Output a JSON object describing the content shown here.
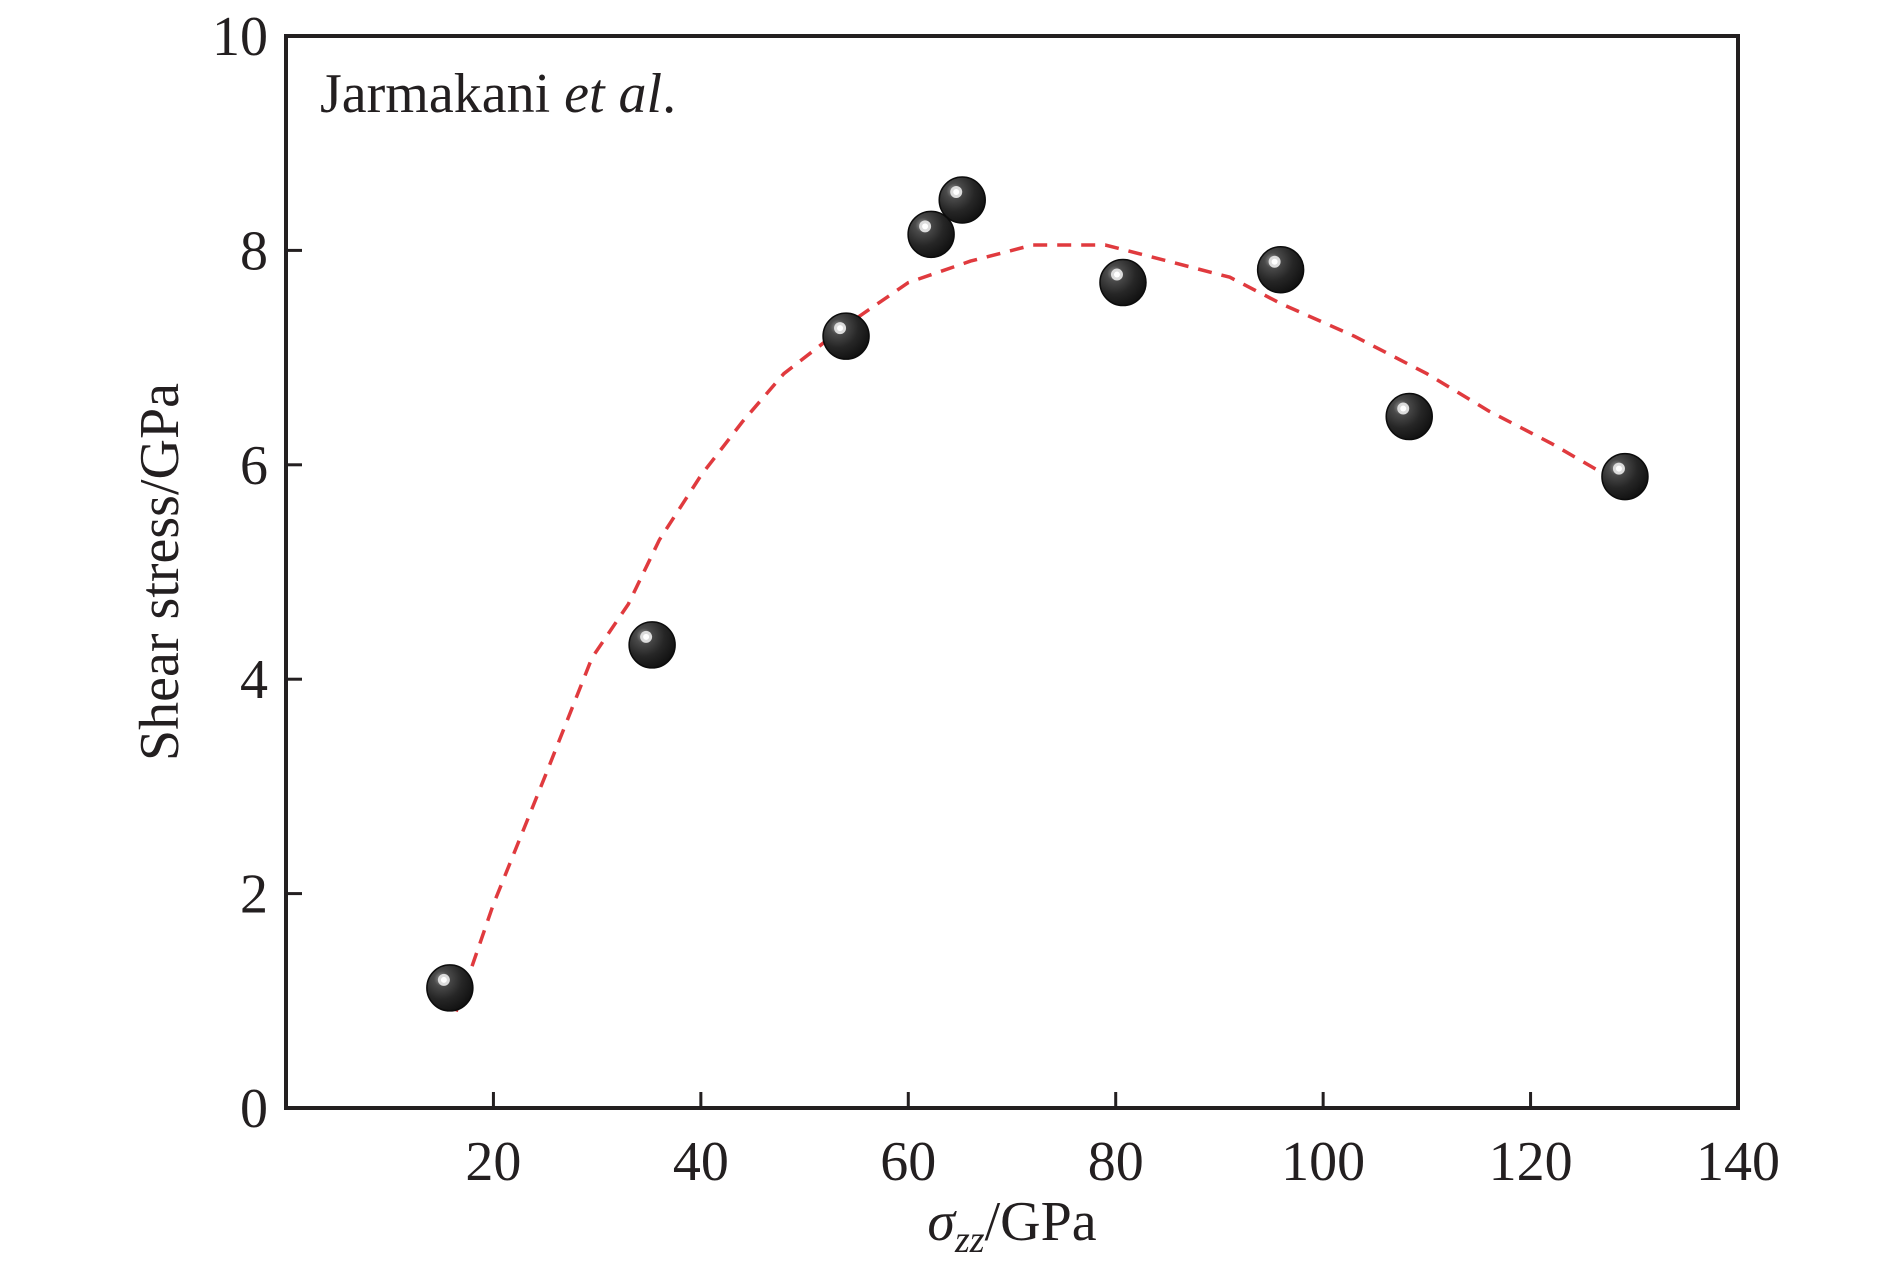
{
  "chart_data": {
    "type": "scatter",
    "title": "",
    "annotation": {
      "prefix": "Jarmakani ",
      "italic": "et al",
      "suffix": "."
    },
    "xlabel": {
      "symbol": "σ",
      "subscript": "zz",
      "unit": "/GPa"
    },
    "ylabel": "Shear stress/GPa",
    "xlim": [
      0,
      140
    ],
    "ylim": [
      0,
      10
    ],
    "xticks": [
      20,
      40,
      60,
      80,
      100,
      120,
      140
    ],
    "yticks": [
      0,
      2,
      4,
      6,
      8,
      10
    ],
    "grid": false,
    "legend": "none",
    "series": [
      {
        "kind": "markers",
        "points": [
          {
            "x": 15.8,
            "y": 1.12
          },
          {
            "x": 35.3,
            "y": 4.32
          },
          {
            "x": 54.0,
            "y": 7.2
          },
          {
            "x": 62.2,
            "y": 8.15
          },
          {
            "x": 65.2,
            "y": 8.47
          },
          {
            "x": 80.7,
            "y": 7.7
          },
          {
            "x": 95.9,
            "y": 7.82
          },
          {
            "x": 108.3,
            "y": 6.45
          },
          {
            "x": 129.1,
            "y": 5.89
          }
        ]
      },
      {
        "kind": "dashed-line",
        "points": [
          {
            "x": 16.4,
            "y": 0.9
          },
          {
            "x": 17.5,
            "y": 1.2
          },
          {
            "x": 20.0,
            "y": 1.9
          },
          {
            "x": 25.0,
            "y": 3.1
          },
          {
            "x": 29.5,
            "y": 4.2
          },
          {
            "x": 33.0,
            "y": 4.7
          },
          {
            "x": 36.0,
            "y": 5.3
          },
          {
            "x": 40.0,
            "y": 5.9
          },
          {
            "x": 44.0,
            "y": 6.4
          },
          {
            "x": 48.0,
            "y": 6.85
          },
          {
            "x": 54.0,
            "y": 7.3
          },
          {
            "x": 60.0,
            "y": 7.7
          },
          {
            "x": 66.0,
            "y": 7.9
          },
          {
            "x": 72.0,
            "y": 8.05
          },
          {
            "x": 79.0,
            "y": 8.05
          },
          {
            "x": 85.0,
            "y": 7.9
          },
          {
            "x": 91.0,
            "y": 7.75
          },
          {
            "x": 96.0,
            "y": 7.5
          },
          {
            "x": 103.0,
            "y": 7.2
          },
          {
            "x": 110.0,
            "y": 6.85
          },
          {
            "x": 116.0,
            "y": 6.5
          },
          {
            "x": 122.0,
            "y": 6.2
          },
          {
            "x": 127.0,
            "y": 5.92
          },
          {
            "x": 128.5,
            "y": 5.8
          }
        ]
      }
    ],
    "colors": {
      "axis": "#231f20",
      "marker": "#222222",
      "marker_highlight": "#ffffff",
      "line": "#e03a3e"
    }
  }
}
